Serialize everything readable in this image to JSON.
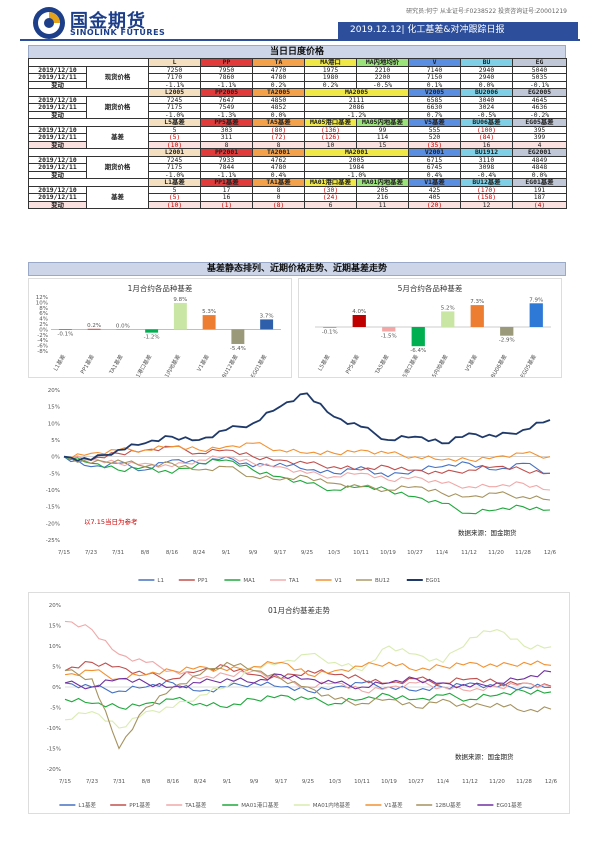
{
  "header": {
    "company_cn": "国金期货",
    "company_en": "SINOLINK FUTURES",
    "staff_info": "研究员:何宁 从业证号:F0238522 投资咨询证号:Z0001219",
    "report_title": "2019.12.12| 化工基差&对冲跟踪日报"
  },
  "section_daily": "当日日度价格",
  "section_charts": "基差静态排列、近期价格走势、近期基差走势",
  "table": {
    "spot": {
      "label": "现货价格",
      "head": [
        "L",
        "PP",
        "TA",
        "MA港口",
        "MA内地均价",
        "V",
        "BU",
        "EG"
      ],
      "rows": [
        {
          "date": "2019/12/10",
          "vals": [
            "7250",
            "7950",
            "4770",
            "1975",
            "2210",
            "7140",
            "2940",
            "5040"
          ]
        },
        {
          "date": "2019/12/11",
          "vals": [
            "7170",
            "7860",
            "4780",
            "1980",
            "2200",
            "7150",
            "2940",
            "5035"
          ]
        },
        {
          "date": "变动",
          "vals": [
            "-1.1%",
            "-1.1%",
            "0.2%",
            "0.2%",
            "-0.5%",
            "0.1%",
            "0.0%",
            "-0.1%"
          ]
        }
      ]
    },
    "futures": {
      "label": "期货价格",
      "head": [
        "L2005",
        "PP2005",
        "TA2005",
        "",
        "MA2005",
        "",
        "V2005",
        "BU2006",
        "EG2005"
      ],
      "rows": [
        {
          "date": "2019/12/10",
          "vals": [
            "7245",
            "7647",
            "4850",
            "2111",
            "6585",
            "3040",
            "4645"
          ]
        },
        {
          "date": "2019/12/11",
          "vals": [
            "7175",
            "7549",
            "4852",
            "2086",
            "6630",
            "3024",
            "4636"
          ]
        },
        {
          "date": "变动",
          "vals": [
            "-1.0%",
            "-1.3%",
            "0.0%",
            "-1.2%",
            "0.7%",
            "-0.5%",
            "-0.2%"
          ]
        }
      ]
    },
    "basis": {
      "label": "基差",
      "head": [
        "L5基差",
        "PP5基差",
        "TA5基差",
        "MA05港口基差",
        "MA05内地基差",
        "V5基差",
        "BU06基差",
        "EG05基差"
      ],
      "rows": [
        {
          "date": "2019/12/10",
          "vals": [
            "5",
            "303",
            "(80)",
            "(136)",
            "99",
            "555",
            "(100)",
            "395"
          ]
        },
        {
          "date": "2019/12/11",
          "vals": [
            "(5)",
            "311",
            "(72)",
            "(126)",
            "114",
            "520",
            "(84)",
            "399"
          ]
        },
        {
          "date": "变动",
          "vals": [
            "(10)",
            "8",
            "8",
            "10",
            "15",
            "(35)",
            "16",
            "4"
          ]
        }
      ]
    },
    "futures01": {
      "label": "期货价格",
      "head": [
        "L2001",
        "PP2001",
        "TA2001",
        "",
        "MA2001",
        "",
        "V2001",
        "BU1912",
        "EG2001"
      ],
      "rows": [
        {
          "date": "2019/12/10",
          "vals": [
            "7245",
            "7933",
            "4762",
            "2005",
            "6715",
            "3110",
            "4849"
          ]
        },
        {
          "date": "2019/12/11",
          "vals": [
            "7175",
            "7844",
            "4780",
            "1984",
            "6745",
            "3098",
            "4848"
          ]
        },
        {
          "date": "变动",
          "vals": [
            "-1.0%",
            "-1.1%",
            "0.4%",
            "-1.0%",
            "0.4%",
            "-0.4%",
            "0.0%"
          ]
        }
      ]
    },
    "basis01": {
      "label": "基差",
      "head": [
        "L1基差",
        "PP1基差",
        "TA1基差",
        "MA01港口基差",
        "MA01内地基差",
        "V1基差",
        "BU12基差",
        "EG01基差"
      ],
      "rows": [
        {
          "date": "2019/12/10",
          "vals": [
            "5",
            "17",
            "8",
            "(30)",
            "205",
            "425",
            "(170)",
            "191"
          ]
        },
        {
          "date": "2019/12/11",
          "vals": [
            "(5)",
            "16",
            "0",
            "(24)",
            "216",
            "405",
            "(158)",
            "187"
          ]
        },
        {
          "date": "变动",
          "vals": [
            "(10)",
            "(1)",
            "(8)",
            "6",
            "11",
            "(20)",
            "12",
            "(4)"
          ]
        }
      ]
    }
  },
  "chart_data": [
    {
      "type": "bar",
      "title": "1月合约各品种基差",
      "categories": [
        "L1基差",
        "PP1基差",
        "TA1基差",
        "MA01港口基差",
        "MA01内地基差",
        "V1基差",
        "BU12基差",
        "EG01基差"
      ],
      "values": [
        -0.1,
        0.2,
        0.0,
        -1.2,
        9.8,
        5.3,
        -5.4,
        3.7
      ],
      "value_labels": [
        "-0.1%",
        "0.2%",
        "0.0%",
        "-1.2%",
        "9.8%",
        "5.3%",
        "-5.4%",
        "3.7%"
      ],
      "colors": [
        "#4472c4",
        "#c00000",
        "#a5a5a5",
        "#00b050",
        "#c9e6a5",
        "#ed7d31",
        "#9a9a7a",
        "#2e5faa"
      ],
      "ylim": [
        -8,
        12
      ],
      "yticks": [
        "12%",
        "10%",
        "8%",
        "6%",
        "4%",
        "2%",
        "0%",
        "-2%",
        "-4%",
        "-6%",
        "-8%"
      ]
    },
    {
      "type": "bar",
      "title": "5月合约各品种基差",
      "categories": [
        "L5基差",
        "PP5基差",
        "TA5基差",
        "MA05港口基差",
        "MA05内地基差",
        "V5基差",
        "BU06基差",
        "EG05基差"
      ],
      "values": [
        -0.1,
        4.0,
        -1.5,
        -6.4,
        5.2,
        7.3,
        -2.9,
        7.9
      ],
      "value_labels": [
        "-0.1%",
        "4.0%",
        "-1.5%",
        "-6.4%",
        "5.2%",
        "7.3%",
        "-2.9%",
        "7.9%"
      ],
      "colors": [
        "#4472c4",
        "#c00000",
        "#f4a6a6",
        "#00b050",
        "#c9e6a5",
        "#ed7d31",
        "#9a9a7a",
        "#2e78d6"
      ],
      "ylim": [
        -8,
        10
      ]
    },
    {
      "type": "line",
      "title": "1月合约价格走势",
      "annotation": "以7.15当日为参考",
      "source": "数据来源：国金期货",
      "x": [
        "7/15",
        "7/23",
        "7/31",
        "8/8",
        "8/16",
        "8/24",
        "9/1",
        "9/9",
        "9/17",
        "9/25",
        "10/3",
        "10/11",
        "10/19",
        "10/27",
        "11/4",
        "11/12",
        "11/20",
        "11/28",
        "12/6"
      ],
      "yticks": [
        "20%",
        "15%",
        "10%",
        "5%",
        "0%",
        "-5%",
        "-10%",
        "-15%",
        "-20%",
        "-25%"
      ],
      "ylim": [
        -25,
        20
      ],
      "series": [
        {
          "name": "L1",
          "color": "#4472c4",
          "values": [
            0,
            -3,
            -2,
            -4,
            -1,
            -2,
            0,
            -3,
            -2,
            -4,
            -5,
            -3,
            -6,
            -4,
            -3,
            -2,
            -4,
            -2,
            -5
          ]
        },
        {
          "name": "PP1",
          "color": "#c0504d",
          "values": [
            0,
            -1,
            1,
            2,
            3,
            1,
            2,
            0,
            -1,
            -2,
            -3,
            -4,
            -3,
            -4,
            -5,
            -4,
            -3,
            -4,
            -5
          ]
        },
        {
          "name": "MA1",
          "color": "#1fa83c",
          "values": [
            0,
            -2,
            -4,
            -3,
            -5,
            -2,
            -1,
            -4,
            -6,
            -8,
            -10,
            -9,
            -10,
            -12,
            -14,
            -17,
            -16,
            -15,
            -16
          ]
        },
        {
          "name": "TA1",
          "color": "#f0a8a8",
          "values": [
            0,
            -1,
            -2,
            -2,
            -3,
            -1,
            0,
            -2,
            -3,
            -5,
            -6,
            -5,
            -7,
            -6,
            -8,
            -9,
            -9,
            -8,
            -10
          ]
        },
        {
          "name": "V1",
          "color": "#f29132",
          "values": [
            0,
            1,
            2,
            2,
            3,
            2,
            3,
            4,
            2,
            1,
            1,
            2,
            1,
            0,
            -1,
            -1,
            0,
            1,
            0
          ]
        },
        {
          "name": "BU12",
          "color": "#a6925e",
          "values": [
            0,
            -2,
            -1,
            -3,
            -2,
            -4,
            -3,
            -6,
            -7,
            -6,
            -8,
            -9,
            -10,
            -9,
            -11,
            -12,
            -11,
            -12,
            -13
          ]
        },
        {
          "name": "EG01",
          "color": "#1f3a6a",
          "values": [
            0,
            -1,
            2,
            4,
            6,
            5,
            8,
            10,
            15,
            19,
            12,
            9,
            5,
            6,
            4,
            7,
            6,
            8,
            11
          ]
        }
      ]
    },
    {
      "type": "line",
      "title": "01月合约基差走势",
      "source": "数据来源：国金期货",
      "x": [
        "7/15",
        "7/23",
        "7/31",
        "8/8",
        "8/16",
        "8/24",
        "9/1",
        "9/9",
        "9/17",
        "9/25",
        "10/3",
        "10/11",
        "10/19",
        "10/27",
        "11/4",
        "11/12",
        "11/20",
        "11/28",
        "12/6"
      ],
      "yticks": [
        "20%",
        "15%",
        "10%",
        "5%",
        "0%",
        "-5%",
        "-10%",
        "-15%",
        "-20%"
      ],
      "ylim": [
        -20,
        20
      ],
      "series": [
        {
          "name": "L1基差",
          "color": "#4472c4",
          "values": [
            1,
            0,
            -1,
            0,
            1,
            -1,
            0,
            1,
            0,
            -1,
            0,
            1,
            0,
            -1,
            0,
            1,
            0,
            0,
            -0.1
          ]
        },
        {
          "name": "PP1基差",
          "color": "#c0504d",
          "values": [
            4,
            6,
            5,
            3,
            2,
            4,
            5,
            3,
            2,
            4,
            3,
            2,
            1,
            2,
            1,
            2,
            1,
            1,
            0.2
          ]
        },
        {
          "name": "TA1基差",
          "color": "#f0a8a8",
          "values": [
            16,
            14,
            8,
            6,
            4,
            2,
            3,
            4,
            2,
            0,
            1,
            -1,
            0,
            1,
            0,
            -1,
            0,
            1,
            0
          ]
        },
        {
          "name": "MA01港口基差",
          "color": "#1fa83c",
          "values": [
            -3,
            -4,
            -5,
            -4,
            -3,
            -4,
            -5,
            -3,
            -2,
            -3,
            -4,
            -3,
            -2,
            -3,
            -2,
            -3,
            -2,
            -1,
            -1.2
          ]
        },
        {
          "name": "MA01内地基差",
          "color": "#d9ecb0",
          "values": [
            -8,
            -6,
            -10,
            -6,
            -5,
            -2,
            0,
            5,
            6,
            8,
            6,
            4,
            10,
            8,
            6,
            12,
            14,
            10,
            9.8
          ]
        },
        {
          "name": "V1基差",
          "color": "#f29132",
          "values": [
            3,
            4,
            2,
            3,
            4,
            5,
            4,
            5,
            6,
            3,
            4,
            5,
            6,
            4,
            5,
            6,
            5,
            6,
            5.3
          ]
        },
        {
          "name": "12BU基差",
          "color": "#a6925e",
          "values": [
            4,
            2,
            -15,
            -5,
            0,
            3,
            6,
            4,
            2,
            0,
            -3,
            -4,
            -3,
            -5,
            -3,
            -5,
            -4,
            -6,
            -5.4
          ]
        },
        {
          "name": "EG01基差",
          "color": "#7030a0",
          "values": [
            1,
            0,
            2,
            1,
            0,
            1,
            2,
            1,
            3,
            2,
            1,
            0,
            1,
            2,
            1,
            0,
            1,
            2,
            3.7
          ]
        }
      ]
    }
  ]
}
